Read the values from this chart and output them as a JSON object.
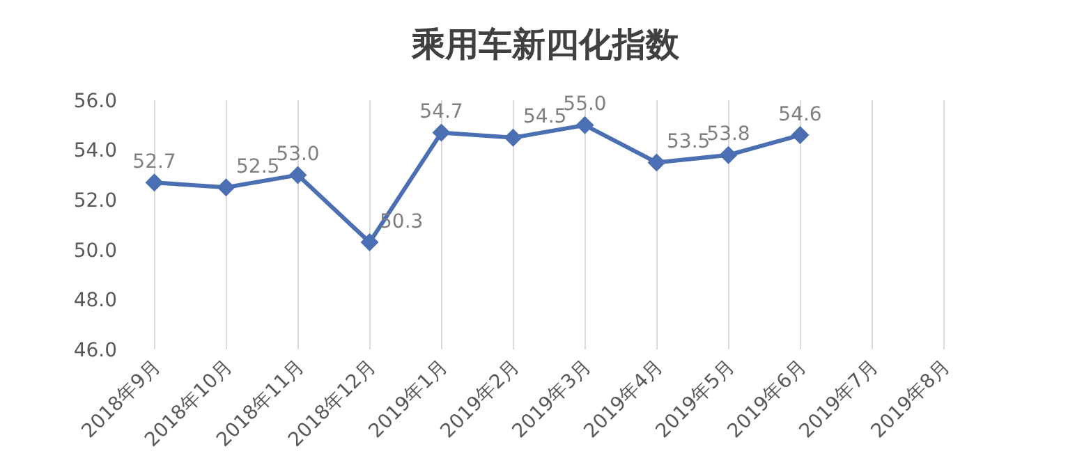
{
  "chart_data": {
    "type": "line",
    "title": "乘用车新四化指数",
    "categories": [
      "2018年9月",
      "2018年10月",
      "2018年11月",
      "2018年12月",
      "2019年1月",
      "2019年2月",
      "2019年3月",
      "2019年4月",
      "2019年5月",
      "2019年6月",
      "2019年7月",
      "2019年8月"
    ],
    "series": [
      {
        "color": "#4a6fb3",
        "values": [
          52.7,
          52.5,
          53.0,
          50.3,
          54.7,
          54.5,
          55.0,
          53.5,
          53.8,
          54.6,
          null,
          null
        ],
        "value_labels": [
          "52.7",
          "52.5",
          "53.0",
          "50.3",
          "54.7",
          "54.5",
          "55.0",
          "53.5",
          "53.8",
          "54.6",
          null,
          null
        ]
      }
    ],
    "ylim": [
      46,
      56
    ],
    "yticks": [
      {
        "value": 46,
        "label": "46.0"
      },
      {
        "value": 48,
        "label": "48.0"
      },
      {
        "value": 50,
        "label": "50.0"
      },
      {
        "value": 52,
        "label": "52.0"
      },
      {
        "value": 54,
        "label": "54.0"
      },
      {
        "value": 56,
        "label": "56.0"
      }
    ],
    "grid": "x",
    "marker": "diamond",
    "line_style": "solid"
  }
}
